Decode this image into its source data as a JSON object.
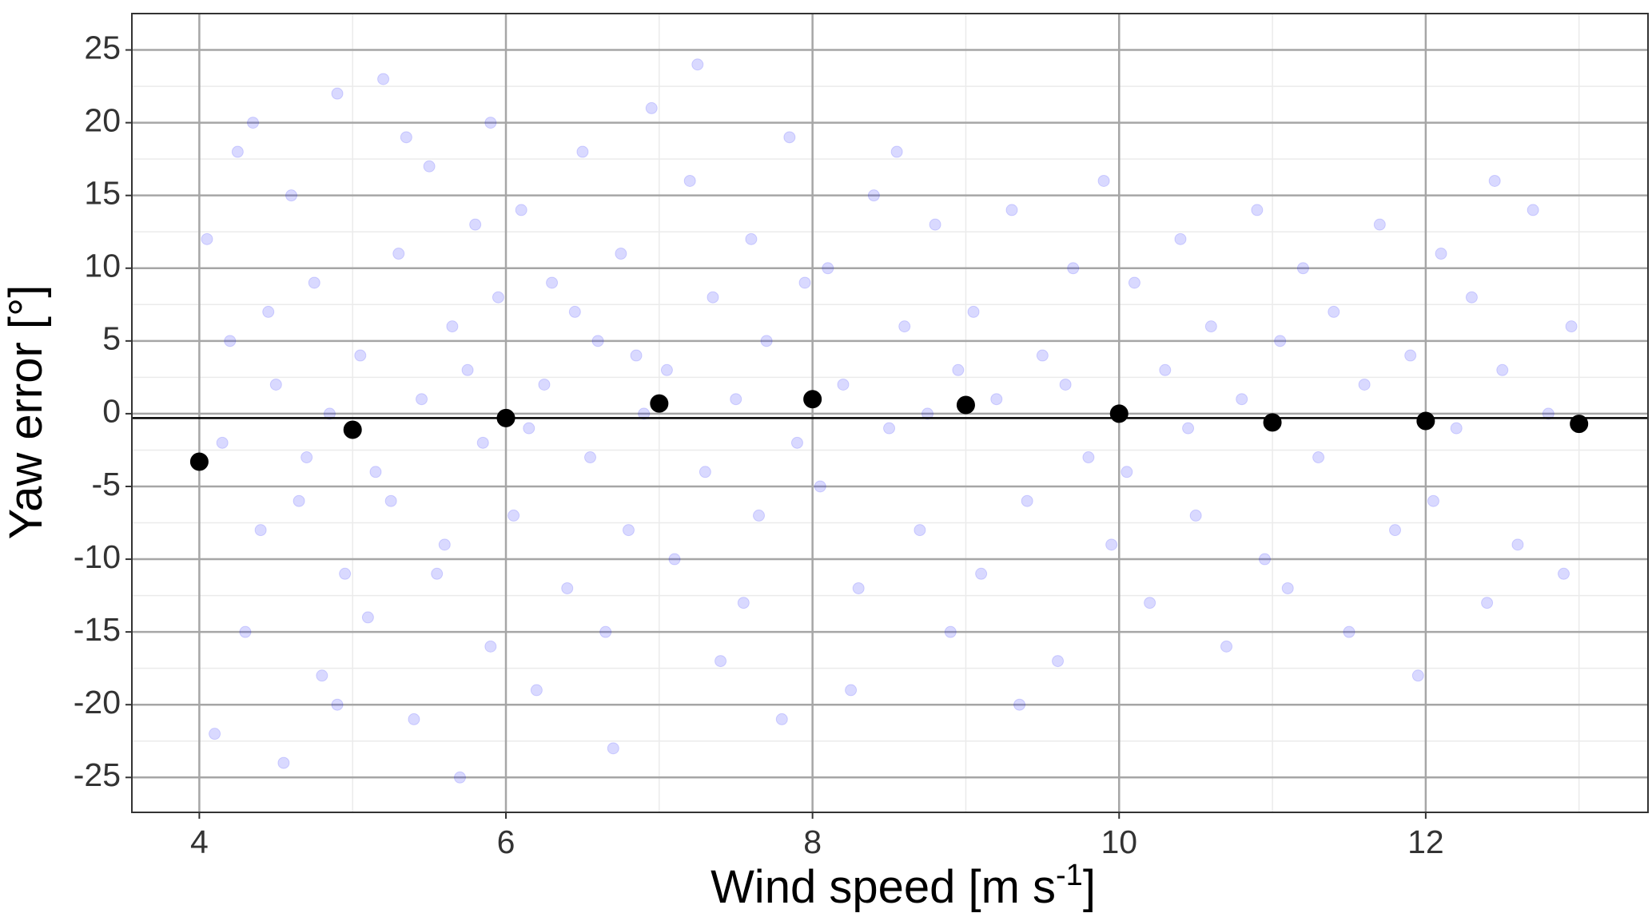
{
  "chart_data": {
    "type": "scatter",
    "xlabel": {
      "text": "Wind speed [m s",
      "sup": "-1",
      "end": "]"
    },
    "ylabel": "Yaw error [°]",
    "xlim": [
      3.56,
      13.45
    ],
    "ylim": [
      -27.4,
      27.5
    ],
    "xticks": [
      4,
      6,
      8,
      10,
      12
    ],
    "yticks": [
      -25,
      -20,
      -15,
      -10,
      -5,
      0,
      5,
      10,
      15,
      20,
      25
    ],
    "xminorticks": [
      5,
      7,
      9,
      11,
      13
    ],
    "yminorticks": [
      -22.5,
      -17.5,
      -12.5,
      -7.5,
      -2.5,
      2.5,
      7.5,
      12.5,
      17.5,
      22.5
    ],
    "grid": true,
    "hline": -0.3,
    "series": [
      {
        "color": "#0000ff",
        "alpha": 0.15,
        "size": 7,
        "x": [
          4.05,
          4.1,
          4.2,
          4.3,
          4.35,
          4.4,
          4.5,
          4.55,
          4.6,
          4.7,
          4.75,
          4.8,
          4.9,
          4.95,
          4.15,
          4.45,
          4.65,
          4.85,
          4.25,
          4.9,
          5.05,
          5.1,
          5.2,
          5.25,
          5.3,
          5.4,
          5.45,
          5.5,
          5.6,
          5.65,
          5.7,
          5.8,
          5.85,
          5.9,
          5.95,
          5.15,
          5.35,
          5.55,
          5.75,
          5.9,
          6.05,
          6.1,
          6.2,
          6.25,
          6.3,
          6.4,
          6.5,
          6.55,
          6.6,
          6.7,
          6.75,
          6.8,
          6.9,
          6.95,
          6.15,
          6.45,
          6.65,
          6.85,
          7.05,
          7.1,
          7.2,
          7.3,
          7.35,
          7.4,
          7.5,
          7.6,
          7.65,
          7.7,
          7.8,
          7.85,
          7.9,
          7.95,
          7.25,
          7.55,
          8.05,
          8.1,
          8.2,
          8.3,
          8.4,
          8.5,
          8.6,
          8.7,
          8.8,
          8.9,
          8.95,
          8.25,
          8.55,
          8.75,
          9.05,
          9.1,
          9.2,
          9.3,
          9.4,
          9.5,
          9.6,
          9.7,
          9.8,
          9.9,
          9.95,
          9.35,
          9.65,
          10.05,
          10.1,
          10.2,
          10.3,
          10.4,
          10.5,
          10.6,
          10.7,
          10.8,
          10.9,
          10.95,
          10.45,
          11.05,
          11.1,
          11.2,
          11.3,
          11.4,
          11.5,
          11.6,
          11.7,
          11.8,
          11.9,
          11.95,
          12.05,
          12.1,
          12.2,
          12.3,
          12.4,
          12.5,
          12.6,
          12.7,
          12.8,
          12.9,
          12.95,
          12.45
        ],
        "y": [
          12,
          -22,
          5,
          -15,
          20,
          -8,
          2,
          -24,
          15,
          -3,
          9,
          -18,
          22,
          -11,
          -2,
          7,
          -6,
          0,
          18,
          -20,
          4,
          -14,
          23,
          -6,
          11,
          -21,
          1,
          17,
          -9,
          6,
          -25,
          13,
          -2,
          -16,
          8,
          -4,
          19,
          -11,
          3,
          20,
          -7,
          14,
          -19,
          2,
          9,
          -12,
          18,
          -3,
          5,
          -23,
          11,
          -8,
          0,
          21,
          -1,
          7,
          -15,
          4,
          3,
          -10,
          16,
          -4,
          8,
          -17,
          1,
          12,
          -7,
          5,
          -21,
          19,
          -2,
          9,
          24,
          -13,
          -5,
          10,
          2,
          -12,
          15,
          -1,
          6,
          -8,
          13,
          -15,
          3,
          -19,
          18,
          0,
          7,
          -11,
          1,
          14,
          -6,
          4,
          -17,
          10,
          -3,
          16,
          -9,
          -20,
          2,
          -4,
          9,
          -13,
          3,
          12,
          -7,
          6,
          -16,
          1,
          14,
          -10,
          -1,
          5,
          -12,
          10,
          -3,
          7,
          -15,
          2,
          13,
          -8,
          4,
          -18,
          -6,
          11,
          -1,
          8,
          -13,
          3,
          -9,
          14,
          0,
          -11,
          6,
          16
        ]
      },
      {
        "color": "#000000",
        "alpha": 1,
        "size": 11,
        "x": [
          4,
          5,
          6,
          7,
          8,
          9,
          10,
          11,
          12,
          13
        ],
        "y": [
          -3.3,
          -1.1,
          -0.3,
          0.7,
          1.0,
          0.6,
          0.0,
          -0.6,
          -0.5,
          -0.7
        ]
      }
    ]
  }
}
